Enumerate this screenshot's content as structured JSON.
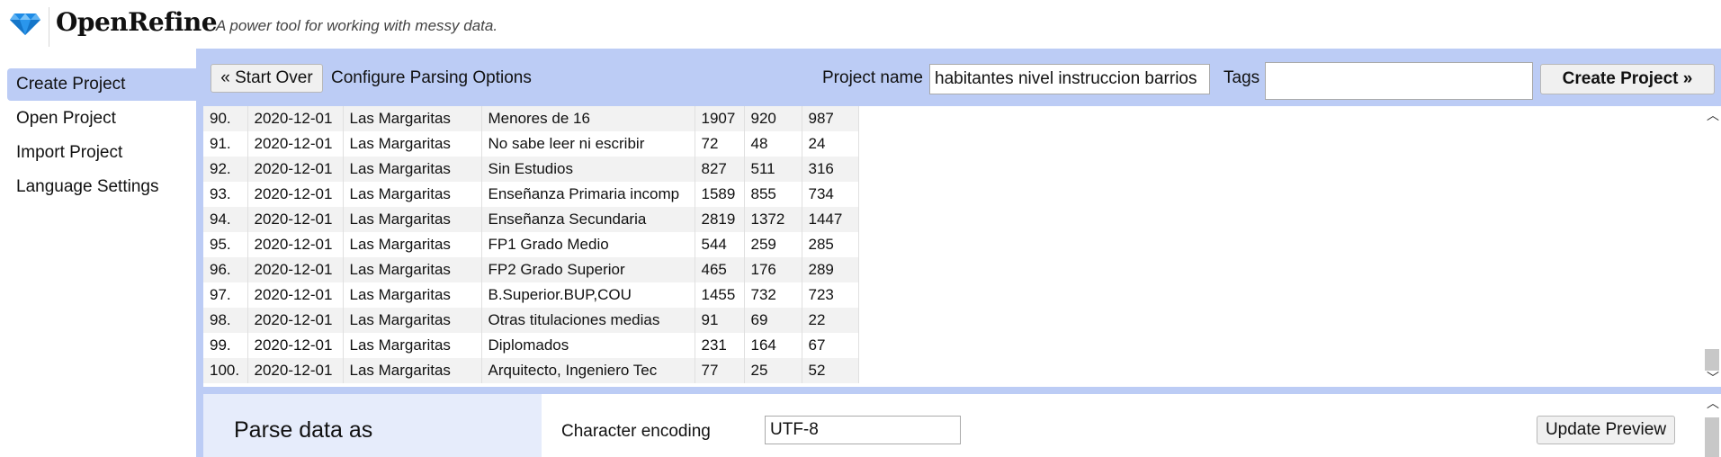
{
  "header": {
    "logo_icon": "diamond-icon",
    "brand": "OpenRefine",
    "tagline": "A power tool for working with messy data."
  },
  "nav": {
    "items": [
      {
        "label": "Create Project",
        "active": true
      },
      {
        "label": "Open Project",
        "active": false
      },
      {
        "label": "Import Project",
        "active": false
      },
      {
        "label": "Language Settings",
        "active": false
      }
    ]
  },
  "toolbar": {
    "start_over": "« Start Over",
    "configure": "Configure Parsing Options",
    "project_name_label": "Project name",
    "project_name_value": "habitantes nivel instruccion barrios",
    "tags_label": "Tags",
    "tags_value": "",
    "create_project": "Create Project »"
  },
  "table": {
    "rows": [
      {
        "idx": "90.",
        "date": "2020-12-01",
        "barrio": "Las Margaritas",
        "nivel": "Menores de 16",
        "n1": "1907",
        "n2": "920",
        "n3": "987"
      },
      {
        "idx": "91.",
        "date": "2020-12-01",
        "barrio": "Las Margaritas",
        "nivel": "No sabe leer ni escribir",
        "n1": "72",
        "n2": "48",
        "n3": "24"
      },
      {
        "idx": "92.",
        "date": "2020-12-01",
        "barrio": "Las Margaritas",
        "nivel": "Sin Estudios",
        "n1": "827",
        "n2": "511",
        "n3": "316"
      },
      {
        "idx": "93.",
        "date": "2020-12-01",
        "barrio": "Las Margaritas",
        "nivel": "Enseñanza Primaria incomp",
        "n1": "1589",
        "n2": "855",
        "n3": "734"
      },
      {
        "idx": "94.",
        "date": "2020-12-01",
        "barrio": "Las Margaritas",
        "nivel": "Enseñanza Secundaria",
        "n1": "2819",
        "n2": "1372",
        "n3": "1447"
      },
      {
        "idx": "95.",
        "date": "2020-12-01",
        "barrio": "Las Margaritas",
        "nivel": "FP1 Grado Medio",
        "n1": "544",
        "n2": "259",
        "n3": "285"
      },
      {
        "idx": "96.",
        "date": "2020-12-01",
        "barrio": "Las Margaritas",
        "nivel": "FP2 Grado Superior",
        "n1": "465",
        "n2": "176",
        "n3": "289"
      },
      {
        "idx": "97.",
        "date": "2020-12-01",
        "barrio": "Las Margaritas",
        "nivel": "B.Superior.BUP,COU",
        "n1": "1455",
        "n2": "732",
        "n3": "723"
      },
      {
        "idx": "98.",
        "date": "2020-12-01",
        "barrio": "Las Margaritas",
        "nivel": "Otras titulaciones medias",
        "n1": "91",
        "n2": "69",
        "n3": "22"
      },
      {
        "idx": "99.",
        "date": "2020-12-01",
        "barrio": "Las Margaritas",
        "nivel": "Diplomados",
        "n1": "231",
        "n2": "164",
        "n3": "67"
      },
      {
        "idx": "100.",
        "date": "2020-12-01",
        "barrio": "Las Margaritas",
        "nivel": "Arquitecto, Ingeniero Tec",
        "n1": "77",
        "n2": "25",
        "n3": "52"
      }
    ]
  },
  "options": {
    "parse_label": "Parse data as",
    "encoding_label": "Character encoding",
    "encoding_value": "UTF-8",
    "update_preview": "Update Preview"
  },
  "colors": {
    "accent": "#bcccf5",
    "diamond": "#1e8be6"
  }
}
